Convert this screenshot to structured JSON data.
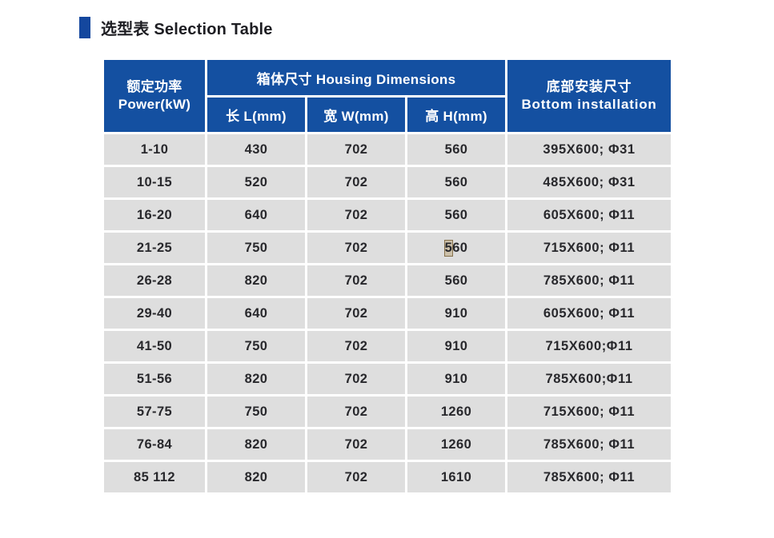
{
  "page": {
    "title": "选型表 Selection Table"
  },
  "colors": {
    "header_blue": "#1450A1",
    "title_accent_blue": "#14479E",
    "row_grey": "#DEDEDE",
    "body_text": "#28282C",
    "selection_highlight_fill": "#CCC0A9",
    "selection_highlight_border": "#86714C"
  },
  "table": {
    "header": {
      "power_zh": "额定功率",
      "power_en": "Power(kW)",
      "housing_group": "箱体尺寸 Housing Dimensions",
      "length": "长 L(mm)",
      "width": "宽 W(mm)",
      "height": "高 H(mm)",
      "bottom_zh": "底部安装尺寸",
      "bottom_en": "Bottom installation"
    },
    "columns": [
      "power",
      "length",
      "width",
      "height",
      "bottom"
    ],
    "rows": [
      {
        "power": "1-10",
        "length": "430",
        "width": "702",
        "height": "560",
        "bottom": "395X600; Φ31"
      },
      {
        "power": "10-15",
        "length": "520",
        "width": "702",
        "height": "560",
        "bottom": "485X600; Φ31"
      },
      {
        "power": "16-20",
        "length": "640",
        "width": "702",
        "height": "560",
        "bottom": "605X600; Φ11"
      },
      {
        "power": "21-25",
        "length": "750",
        "width": "702",
        "height": "560",
        "bottom": "715X600; Φ11",
        "height_highlight_first": true
      },
      {
        "power": "26-28",
        "length": "820",
        "width": "702",
        "height": "560",
        "bottom": "785X600; Φ11"
      },
      {
        "power": "29-40",
        "length": "640",
        "width": "702",
        "height": "910",
        "bottom": "605X600; Φ11"
      },
      {
        "power": "41-50",
        "length": "750",
        "width": "702",
        "height": "910",
        "bottom": "715X600;Φ11"
      },
      {
        "power": "51-56",
        "length": "820",
        "width": "702",
        "height": "910",
        "bottom": "785X600;Φ11"
      },
      {
        "power": "57-75",
        "length": "750",
        "width": "702",
        "height": "1260",
        "bottom": "715X600; Φ11"
      },
      {
        "power": "76-84",
        "length": "820",
        "width": "702",
        "height": "1260",
        "bottom": "785X600; Φ11"
      },
      {
        "power": "85 112",
        "length": "820",
        "width": "702",
        "height": "1610",
        "bottom": "785X600; Φ11"
      }
    ]
  }
}
